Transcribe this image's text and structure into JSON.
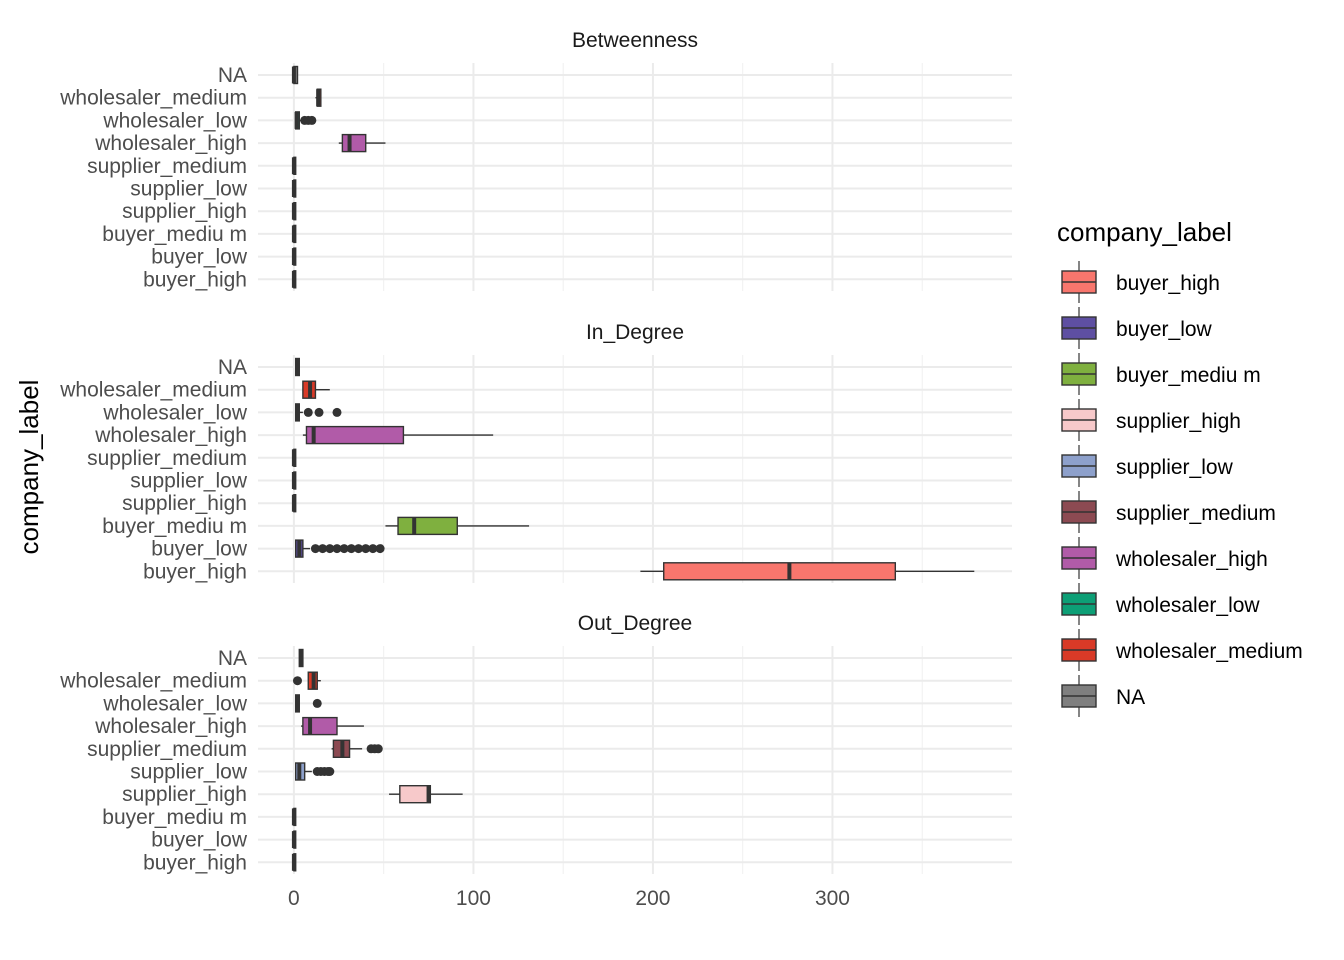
{
  "chart_data": {
    "type": "boxplot",
    "facets": [
      "Betweenness",
      "In_Degree",
      "Out_Degree"
    ],
    "categories": [
      "NA",
      "wholesaler_medium",
      "wholesaler_low",
      "wholesaler_high",
      "supplier_medium",
      "supplier_low",
      "supplier_high",
      "buyer_mediu m",
      "buyer_low",
      "buyer_high"
    ],
    "ylabel": "company_label",
    "xlim": [
      -20,
      400
    ],
    "x_ticks": [
      0,
      100,
      200,
      300
    ],
    "grid": true,
    "legend": {
      "title": "company_label",
      "position": "right",
      "items": [
        {
          "label": "buyer_high",
          "color": "#F8766D"
        },
        {
          "label": "buyer_low",
          "color": "#5E4FA2"
        },
        {
          "label": "buyer_mediu m",
          "color": "#7FB03F"
        },
        {
          "label": "supplier_high",
          "color": "#F7C9CA"
        },
        {
          "label": "supplier_low",
          "color": "#8DA0CB"
        },
        {
          "label": "supplier_medium",
          "color": "#8C4A52"
        },
        {
          "label": "wholesaler_high",
          "color": "#B15BA8"
        },
        {
          "label": "wholesaler_low",
          "color": "#0D9F76"
        },
        {
          "label": "wholesaler_medium",
          "color": "#D93A27"
        },
        {
          "label": "NA",
          "color": "#7F7F7F"
        }
      ]
    },
    "panels": [
      {
        "facet": "Betweenness",
        "boxes": [
          {
            "category": "NA",
            "whisker_low": 0,
            "q1": 0,
            "median": 0,
            "q3": 2,
            "whisker_high": 2,
            "outliers": []
          },
          {
            "category": "wholesaler_medium",
            "whisker_low": 12,
            "q1": 13,
            "median": 13.5,
            "q3": 15,
            "whisker_high": 15,
            "outliers": []
          },
          {
            "category": "wholesaler_low",
            "whisker_low": 1,
            "q1": 1,
            "median": 1.5,
            "q3": 3,
            "whisker_high": 4,
            "outliers": [
              6,
              8,
              10
            ]
          },
          {
            "category": "wholesaler_high",
            "whisker_low": 25,
            "q1": 27,
            "median": 31,
            "q3": 40,
            "whisker_high": 51,
            "outliers": []
          },
          {
            "category": "supplier_medium",
            "whisker_low": 0,
            "q1": 0,
            "median": 0,
            "q3": 1,
            "whisker_high": 1,
            "outliers": []
          },
          {
            "category": "supplier_low",
            "whisker_low": 0,
            "q1": 0,
            "median": 0,
            "q3": 1,
            "whisker_high": 1,
            "outliers": []
          },
          {
            "category": "supplier_high",
            "whisker_low": 0,
            "q1": 0,
            "median": 0,
            "q3": 1,
            "whisker_high": 1,
            "outliers": []
          },
          {
            "category": "buyer_mediu m",
            "whisker_low": 0,
            "q1": 0,
            "median": 0,
            "q3": 1,
            "whisker_high": 1,
            "outliers": []
          },
          {
            "category": "buyer_low",
            "whisker_low": 0,
            "q1": 0,
            "median": 0,
            "q3": 1,
            "whisker_high": 1,
            "outliers": []
          },
          {
            "category": "buyer_high",
            "whisker_low": 0,
            "q1": 0,
            "median": 0,
            "q3": 1,
            "whisker_high": 1,
            "outliers": []
          }
        ]
      },
      {
        "facet": "In_Degree",
        "boxes": [
          {
            "category": "NA",
            "whisker_low": 1,
            "q1": 1,
            "median": 2,
            "q3": 3,
            "whisker_high": 3,
            "outliers": []
          },
          {
            "category": "wholesaler_medium",
            "whisker_low": 5,
            "q1": 5,
            "median": 9,
            "q3": 12,
            "whisker_high": 20,
            "outliers": []
          },
          {
            "category": "wholesaler_low",
            "whisker_low": 1,
            "q1": 1,
            "median": 2,
            "q3": 3,
            "whisker_high": 5,
            "outliers": [
              8,
              14,
              24
            ]
          },
          {
            "category": "wholesaler_high",
            "whisker_low": 5,
            "q1": 7,
            "median": 11,
            "q3": 61,
            "whisker_high": 111,
            "outliers": []
          },
          {
            "category": "supplier_medium",
            "whisker_low": 0,
            "q1": 0,
            "median": 0,
            "q3": 1,
            "whisker_high": 1,
            "outliers": []
          },
          {
            "category": "supplier_low",
            "whisker_low": 0,
            "q1": 0,
            "median": 0,
            "q3": 1,
            "whisker_high": 1,
            "outliers": []
          },
          {
            "category": "supplier_high",
            "whisker_low": 0,
            "q1": 0,
            "median": 0,
            "q3": 1,
            "whisker_high": 1,
            "outliers": []
          },
          {
            "category": "buyer_mediu m",
            "whisker_low": 51,
            "q1": 58,
            "median": 67,
            "q3": 91,
            "whisker_high": 131,
            "outliers": []
          },
          {
            "category": "buyer_low",
            "whisker_low": 1,
            "q1": 1,
            "median": 3,
            "q3": 5,
            "whisker_high": 9,
            "outliers": [
              12,
              16,
              20,
              24,
              28,
              32,
              36,
              40,
              44,
              48
            ]
          },
          {
            "category": "buyer_high",
            "whisker_low": 193,
            "q1": 206,
            "median": 276,
            "q3": 335,
            "whisker_high": 379,
            "outliers": []
          }
        ]
      },
      {
        "facet": "Out_Degree",
        "boxes": [
          {
            "category": "NA",
            "whisker_low": 3,
            "q1": 3,
            "median": 4,
            "q3": 5,
            "whisker_high": 5,
            "outliers": []
          },
          {
            "category": "wholesaler_medium",
            "whisker_low": 8,
            "q1": 8,
            "median": 11,
            "q3": 13,
            "whisker_high": 15,
            "outliers": [
              2
            ]
          },
          {
            "category": "wholesaler_low",
            "whisker_low": 1,
            "q1": 1,
            "median": 2,
            "q3": 3,
            "whisker_high": 3,
            "outliers": [
              13
            ]
          },
          {
            "category": "wholesaler_high",
            "whisker_low": 4,
            "q1": 5,
            "median": 9,
            "q3": 24,
            "whisker_high": 39,
            "outliers": []
          },
          {
            "category": "supplier_medium",
            "whisker_low": 21,
            "q1": 22,
            "median": 27,
            "q3": 31,
            "whisker_high": 38,
            "outliers": [
              43,
              45,
              47
            ]
          },
          {
            "category": "supplier_low",
            "whisker_low": 1,
            "q1": 1,
            "median": 3,
            "q3": 6,
            "whisker_high": 10,
            "outliers": [
              13,
              15,
              17,
              19,
              20
            ]
          },
          {
            "category": "supplier_high",
            "whisker_low": 53,
            "q1": 59,
            "median": 75,
            "q3": 76,
            "whisker_high": 94,
            "outliers": []
          },
          {
            "category": "buyer_mediu m",
            "whisker_low": 0,
            "q1": 0,
            "median": 0,
            "q3": 1,
            "whisker_high": 1,
            "outliers": []
          },
          {
            "category": "buyer_low",
            "whisker_low": 0,
            "q1": 0,
            "median": 0,
            "q3": 1,
            "whisker_high": 1,
            "outliers": []
          },
          {
            "category": "buyer_high",
            "whisker_low": 0,
            "q1": 0,
            "median": 0,
            "q3": 1,
            "whisker_high": 1,
            "outliers": []
          }
        ]
      }
    ]
  }
}
